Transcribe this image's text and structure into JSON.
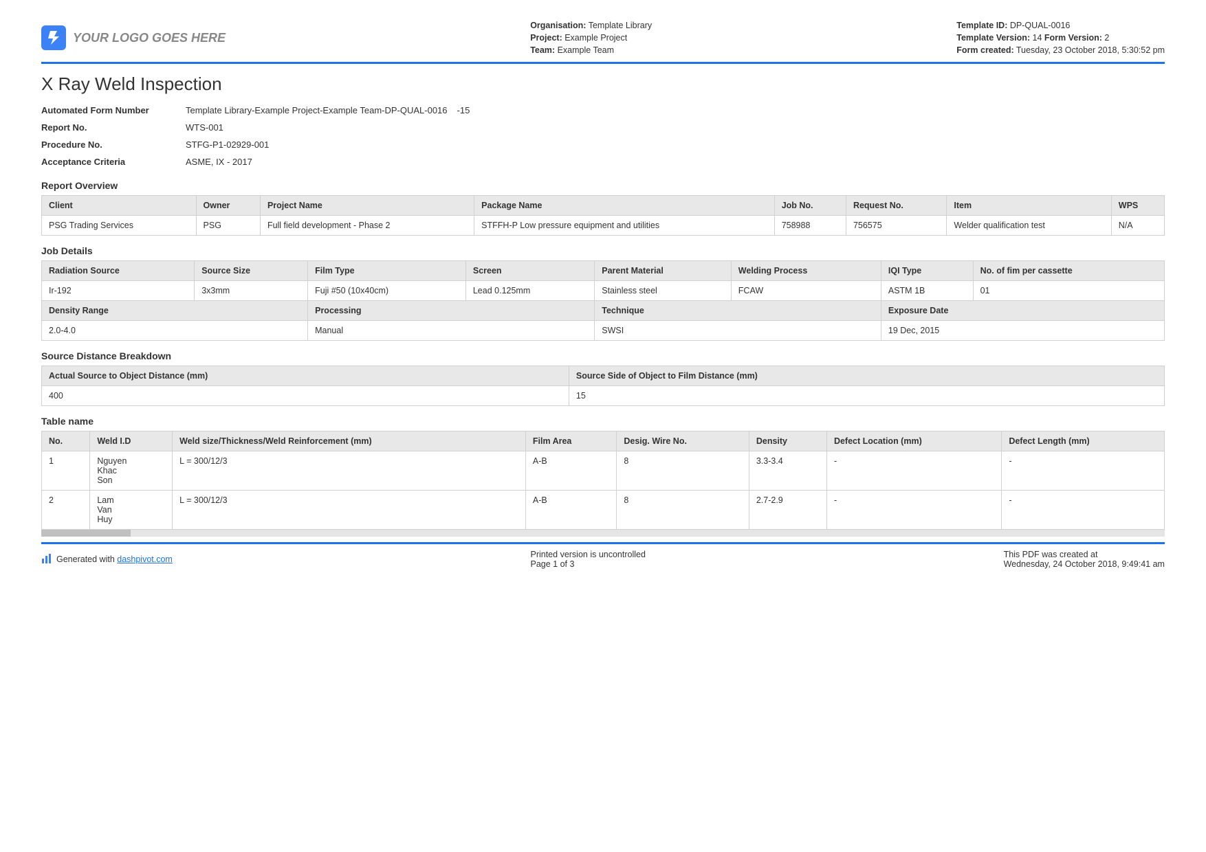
{
  "header": {
    "logo_text": "YOUR LOGO GOES HERE",
    "col1": {
      "org_lbl": "Organisation:",
      "org_val": "Template Library",
      "proj_lbl": "Project:",
      "proj_val": "Example Project",
      "team_lbl": "Team:",
      "team_val": "Example Team"
    },
    "col2": {
      "tid_lbl": "Template ID:",
      "tid_val": "DP-QUAL-0016",
      "tv_lbl": "Template Version:",
      "tv_val": "14",
      "fv_lbl": "Form Version:",
      "fv_val": "2",
      "fc_lbl": "Form created:",
      "fc_val": "Tuesday, 23 October 2018, 5:30:52 pm"
    }
  },
  "title": "X Ray Weld Inspection",
  "info": {
    "afn_lbl": "Automated Form Number",
    "afn_val": "Template Library-Example Project-Example Team-DP-QUAL-0016",
    "afn_suffix": "-15",
    "report_lbl": "Report No.",
    "report_val": "WTS-001",
    "proc_lbl": "Procedure No.",
    "proc_val": "STFG-P1-02929-001",
    "acc_lbl": "Acceptance Criteria",
    "acc_val": "ASME, IX - 2017"
  },
  "sections": {
    "overview": "Report Overview",
    "job": "Job Details",
    "source": "Source Distance Breakdown",
    "table": "Table name"
  },
  "overview": {
    "headers": [
      "Client",
      "Owner",
      "Project Name",
      "Package Name",
      "Job No.",
      "Request No.",
      "Item",
      "WPS"
    ],
    "row": [
      "PSG Trading Services",
      "PSG",
      "Full field development - Phase 2",
      "STFFH-P Low pressure equipment and utilities",
      "758988",
      "756575",
      "Welder qualification test",
      "N/A"
    ]
  },
  "job": {
    "h1": [
      "Radiation Source",
      "Source Size",
      "Film Type",
      "Screen",
      "Parent Material",
      "Welding Process",
      "IQI Type",
      "No. of fim per cassette"
    ],
    "r1": [
      "Ir-192",
      "3x3mm",
      "Fuji #50 (10x40cm)",
      "Lead 0.125mm",
      "Stainless steel",
      "FCAW",
      "ASTM 1B",
      "01"
    ],
    "h2": [
      "Density Range",
      "Processing",
      "Technique",
      "Exposure Date"
    ],
    "r2": [
      "2.0-4.0",
      "Manual",
      "SWSI",
      "19 Dec, 2015"
    ]
  },
  "source": {
    "headers": [
      "Actual Source to Object Distance (mm)",
      "Source Side of Object to Film Distance (mm)"
    ],
    "row": [
      "400",
      "15"
    ]
  },
  "datatable": {
    "headers": [
      "No.",
      "Weld I.D",
      "Weld size/Thickness/Weld Reinforcement (mm)",
      "Film Area",
      "Desig. Wire No.",
      "Density",
      "Defect Location (mm)",
      "Defect Length (mm)"
    ],
    "rows": [
      [
        "1",
        "Nguyen\nKhac\nSon",
        "L = 300/12/3",
        "A-B",
        "8",
        "3.3-3.4",
        "-",
        "-"
      ],
      [
        "2",
        "Lam\nVan\nHuy",
        "L = 300/12/3",
        "A-B",
        "8",
        "2.7-2.9",
        "-",
        "-"
      ]
    ]
  },
  "footer": {
    "gen": "Generated with ",
    "link": "dashpivot.com",
    "uncontrolled": "Printed version is uncontrolled",
    "page": "Page 1 of 3",
    "created_lbl": "This PDF was created at",
    "created_val": "Wednesday, 24 October 2018, 9:49:41 am"
  },
  "style": {
    "accent": "#1a73e8",
    "header_bg": "#e8e8e8",
    "border": "#d0d0d0"
  }
}
